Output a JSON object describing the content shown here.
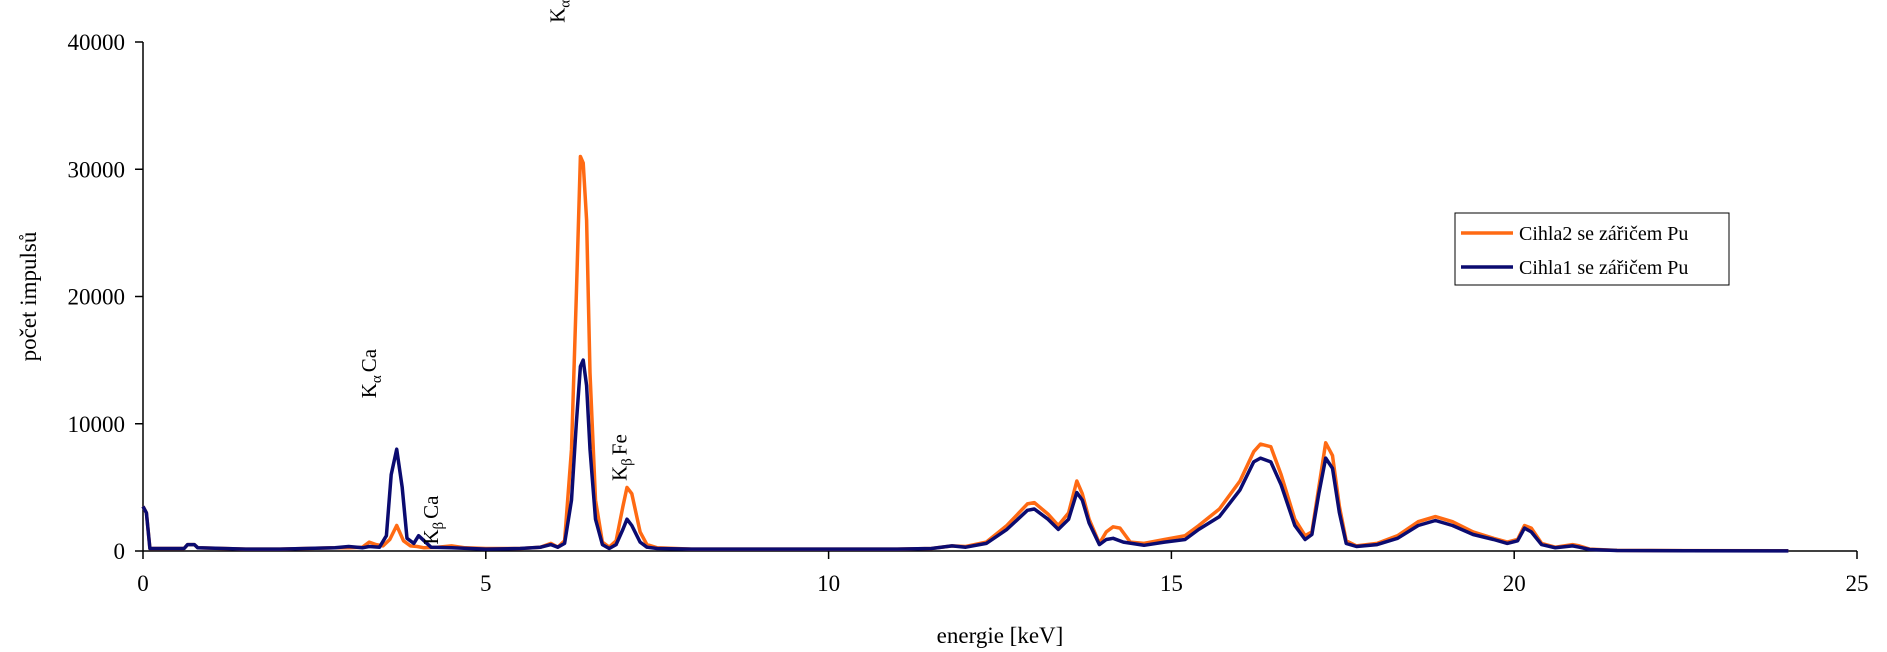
{
  "chart_data": {
    "type": "line",
    "xlabel": "energie [keV]",
    "ylabel": "počet impulsů",
    "xlim": [
      0,
      25
    ],
    "ylim": [
      0,
      40000
    ],
    "x_ticks": [
      "0",
      "5",
      "10",
      "15",
      "20",
      "25"
    ],
    "y_ticks": [
      "0",
      "10000",
      "20000",
      "30000",
      "40000"
    ],
    "grid": false,
    "legend_position": "right",
    "series": [
      {
        "name": "Cihla2 se zářičem Pu",
        "color": "#FF6A13",
        "points": [
          [
            0.0,
            3500
          ],
          [
            0.05,
            3000
          ],
          [
            0.1,
            200
          ],
          [
            0.6,
            200
          ],
          [
            0.65,
            500
          ],
          [
            0.75,
            500
          ],
          [
            0.8,
            250
          ],
          [
            1.5,
            150
          ],
          [
            2.0,
            150
          ],
          [
            2.8,
            250
          ],
          [
            3.0,
            250
          ],
          [
            3.2,
            300
          ],
          [
            3.3,
            700
          ],
          [
            3.4,
            500
          ],
          [
            3.5,
            400
          ],
          [
            3.6,
            900
          ],
          [
            3.7,
            2000
          ],
          [
            3.8,
            800
          ],
          [
            3.9,
            400
          ],
          [
            4.0,
            350
          ],
          [
            4.1,
            250
          ],
          [
            4.3,
            300
          ],
          [
            4.5,
            400
          ],
          [
            4.7,
            250
          ],
          [
            5.0,
            200
          ],
          [
            5.5,
            200
          ],
          [
            5.8,
            300
          ],
          [
            5.95,
            600
          ],
          [
            6.05,
            300
          ],
          [
            6.15,
            800
          ],
          [
            6.25,
            8000
          ],
          [
            6.32,
            20000
          ],
          [
            6.38,
            31000
          ],
          [
            6.42,
            30500
          ],
          [
            6.47,
            26000
          ],
          [
            6.52,
            14000
          ],
          [
            6.6,
            4000
          ],
          [
            6.7,
            700
          ],
          [
            6.8,
            300
          ],
          [
            6.9,
            800
          ],
          [
            7.0,
            3500
          ],
          [
            7.06,
            5000
          ],
          [
            7.13,
            4500
          ],
          [
            7.25,
            1500
          ],
          [
            7.35,
            500
          ],
          [
            7.5,
            250
          ],
          [
            8.0,
            150
          ],
          [
            9.0,
            150
          ],
          [
            10.0,
            150
          ],
          [
            11.0,
            150
          ],
          [
            11.5,
            200
          ],
          [
            11.8,
            400
          ],
          [
            12.0,
            350
          ],
          [
            12.3,
            700
          ],
          [
            12.6,
            2000
          ],
          [
            12.9,
            3700
          ],
          [
            13.0,
            3800
          ],
          [
            13.2,
            2900
          ],
          [
            13.35,
            2000
          ],
          [
            13.5,
            3000
          ],
          [
            13.62,
            5500
          ],
          [
            13.7,
            4500
          ],
          [
            13.8,
            2500
          ],
          [
            13.95,
            600
          ],
          [
            14.05,
            1500
          ],
          [
            14.15,
            1900
          ],
          [
            14.25,
            1800
          ],
          [
            14.4,
            700
          ],
          [
            14.6,
            600
          ],
          [
            14.9,
            900
          ],
          [
            15.2,
            1200
          ],
          [
            15.4,
            2000
          ],
          [
            15.7,
            3300
          ],
          [
            16.0,
            5500
          ],
          [
            16.2,
            7800
          ],
          [
            16.3,
            8400
          ],
          [
            16.45,
            8200
          ],
          [
            16.6,
            6000
          ],
          [
            16.8,
            2500
          ],
          [
            16.95,
            1200
          ],
          [
            17.05,
            1500
          ],
          [
            17.15,
            5000
          ],
          [
            17.25,
            8500
          ],
          [
            17.35,
            7500
          ],
          [
            17.45,
            3500
          ],
          [
            17.55,
            800
          ],
          [
            17.7,
            400
          ],
          [
            18.0,
            600
          ],
          [
            18.3,
            1200
          ],
          [
            18.6,
            2300
          ],
          [
            18.85,
            2700
          ],
          [
            19.1,
            2300
          ],
          [
            19.4,
            1500
          ],
          [
            19.7,
            1000
          ],
          [
            19.9,
            700
          ],
          [
            20.05,
            900
          ],
          [
            20.15,
            2000
          ],
          [
            20.25,
            1800
          ],
          [
            20.4,
            600
          ],
          [
            20.6,
            300
          ],
          [
            20.85,
            500
          ],
          [
            20.95,
            400
          ],
          [
            21.1,
            150
          ],
          [
            21.5,
            50
          ],
          [
            22.5,
            30
          ],
          [
            24.0,
            20
          ]
        ]
      },
      {
        "name": "Cihla1 se zářičem Pu",
        "color": "#0B0B70",
        "points": [
          [
            0.0,
            3500
          ],
          [
            0.05,
            3000
          ],
          [
            0.1,
            200
          ],
          [
            0.6,
            200
          ],
          [
            0.65,
            500
          ],
          [
            0.75,
            500
          ],
          [
            0.8,
            250
          ],
          [
            1.5,
            150
          ],
          [
            2.0,
            150
          ],
          [
            2.8,
            250
          ],
          [
            3.0,
            350
          ],
          [
            3.2,
            250
          ],
          [
            3.3,
            350
          ],
          [
            3.45,
            300
          ],
          [
            3.55,
            1200
          ],
          [
            3.62,
            6000
          ],
          [
            3.7,
            8000
          ],
          [
            3.78,
            5000
          ],
          [
            3.85,
            1000
          ],
          [
            3.95,
            600
          ],
          [
            4.02,
            1200
          ],
          [
            4.1,
            800
          ],
          [
            4.2,
            300
          ],
          [
            4.5,
            250
          ],
          [
            5.0,
            150
          ],
          [
            5.5,
            200
          ],
          [
            5.8,
            300
          ],
          [
            5.95,
            500
          ],
          [
            6.05,
            300
          ],
          [
            6.15,
            600
          ],
          [
            6.25,
            4000
          ],
          [
            6.32,
            10000
          ],
          [
            6.38,
            14500
          ],
          [
            6.42,
            15000
          ],
          [
            6.47,
            13000
          ],
          [
            6.52,
            8000
          ],
          [
            6.6,
            2500
          ],
          [
            6.7,
            500
          ],
          [
            6.8,
            200
          ],
          [
            6.9,
            500
          ],
          [
            7.0,
            1700
          ],
          [
            7.06,
            2500
          ],
          [
            7.13,
            2000
          ],
          [
            7.25,
            700
          ],
          [
            7.35,
            300
          ],
          [
            7.5,
            200
          ],
          [
            8.0,
            150
          ],
          [
            9.0,
            150
          ],
          [
            10.0,
            150
          ],
          [
            11.0,
            150
          ],
          [
            11.5,
            200
          ],
          [
            11.8,
            400
          ],
          [
            12.0,
            300
          ],
          [
            12.3,
            600
          ],
          [
            12.6,
            1700
          ],
          [
            12.9,
            3200
          ],
          [
            13.0,
            3300
          ],
          [
            13.2,
            2500
          ],
          [
            13.35,
            1700
          ],
          [
            13.5,
            2500
          ],
          [
            13.62,
            4600
          ],
          [
            13.7,
            4000
          ],
          [
            13.8,
            2200
          ],
          [
            13.95,
            500
          ],
          [
            14.05,
            900
          ],
          [
            14.15,
            1000
          ],
          [
            14.3,
            700
          ],
          [
            14.6,
            450
          ],
          [
            14.9,
            700
          ],
          [
            15.2,
            900
          ],
          [
            15.4,
            1700
          ],
          [
            15.7,
            2700
          ],
          [
            16.0,
            4800
          ],
          [
            16.2,
            7000
          ],
          [
            16.3,
            7300
          ],
          [
            16.45,
            7000
          ],
          [
            16.6,
            5200
          ],
          [
            16.8,
            2000
          ],
          [
            16.95,
            900
          ],
          [
            17.05,
            1300
          ],
          [
            17.15,
            4500
          ],
          [
            17.25,
            7300
          ],
          [
            17.35,
            6500
          ],
          [
            17.45,
            3000
          ],
          [
            17.55,
            600
          ],
          [
            17.7,
            350
          ],
          [
            18.0,
            500
          ],
          [
            18.3,
            1000
          ],
          [
            18.6,
            2000
          ],
          [
            18.85,
            2400
          ],
          [
            19.1,
            2000
          ],
          [
            19.4,
            1300
          ],
          [
            19.7,
            900
          ],
          [
            19.9,
            600
          ],
          [
            20.05,
            800
          ],
          [
            20.15,
            1800
          ],
          [
            20.25,
            1500
          ],
          [
            20.4,
            500
          ],
          [
            20.6,
            250
          ],
          [
            20.85,
            400
          ],
          [
            20.95,
            300
          ],
          [
            21.1,
            120
          ],
          [
            21.5,
            40
          ],
          [
            22.5,
            20
          ],
          [
            24.0,
            10
          ]
        ]
      }
    ],
    "annotations": [
      {
        "main": "K",
        "sub": "α",
        "rest": "Ca",
        "x": 3.4,
        "y": 12000
      },
      {
        "main": "K",
        "sub": "β",
        "rest": "Ca",
        "x": 4.3,
        "y": 500
      },
      {
        "main": "K",
        "sub": "α",
        "rest": "Fe",
        "x": 6.15,
        "y": 41500
      },
      {
        "main": "K",
        "sub": "β",
        "rest": "Fe",
        "x": 7.05,
        "y": 5500
      }
    ]
  }
}
